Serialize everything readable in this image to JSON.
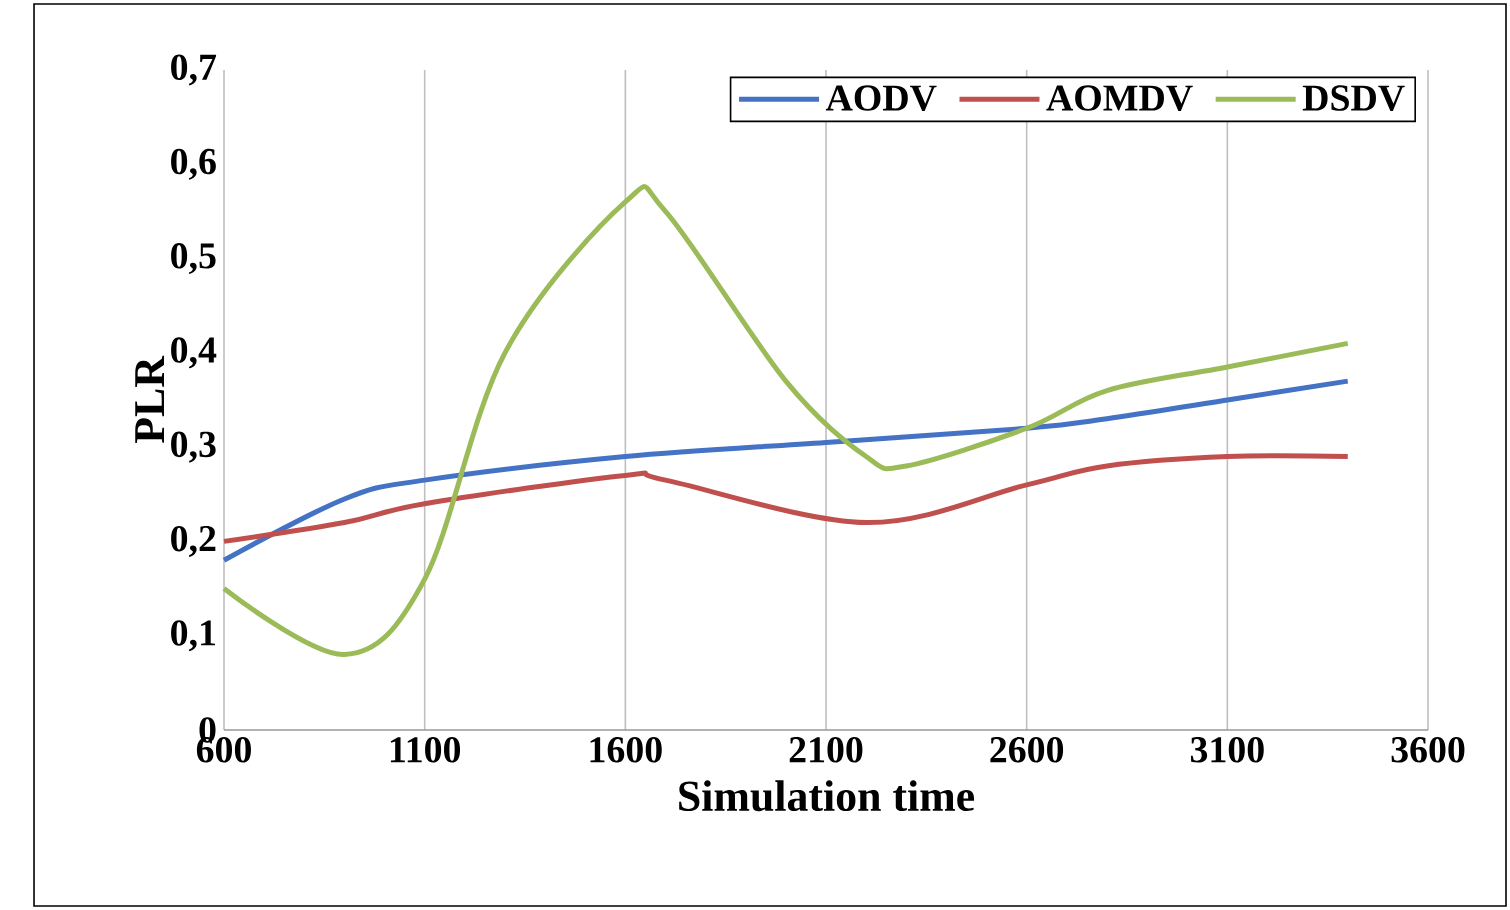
{
  "chart_data": {
    "type": "line",
    "xlabel": "Simulation time",
    "ylabel": "PLR",
    "xlim": [
      600,
      3600
    ],
    "xticks": [
      600,
      1100,
      1600,
      2100,
      2600,
      3100,
      3600
    ],
    "ylim": [
      0,
      0.7
    ],
    "yticks": [
      0,
      {
        "value": 0.1,
        "label": "0,1"
      },
      {
        "value": 0.2,
        "label": "0,2"
      },
      {
        "value": 0.3,
        "label": "0,3"
      },
      {
        "value": 0.4,
        "label": "0,4"
      },
      {
        "value": 0.5,
        "label": "0,5"
      },
      {
        "value": 0.6,
        "label": "0,6"
      },
      {
        "value": 0.7,
        "label": "0,7"
      }
    ],
    "grid": "x",
    "legend": "top right",
    "marker": "none",
    "line_style": "solid",
    "series": [
      {
        "name": "AODV",
        "color": "#4472c4",
        "x": [
          600,
          900,
          1100,
          1600,
          2100,
          2600,
          2800,
          3100,
          3400
        ],
        "values": [
          0.18,
          0.245,
          0.265,
          0.29,
          0.305,
          0.32,
          0.33,
          0.35,
          0.37
        ]
      },
      {
        "name": "AOMDV",
        "color": "#c0504d",
        "x": [
          600,
          900,
          1100,
          1600,
          1700,
          2200,
          2600,
          2800,
          3100,
          3400
        ],
        "values": [
          0.2,
          0.22,
          0.24,
          0.27,
          0.265,
          0.22,
          0.26,
          0.28,
          0.29,
          0.29
        ]
      },
      {
        "name": "DSDV",
        "color": "#9bbb59",
        "x": [
          600,
          900,
          1100,
          1300,
          1600,
          1700,
          2000,
          2200,
          2300,
          2600,
          2800,
          3100,
          3400
        ],
        "values": [
          0.15,
          0.08,
          0.16,
          0.4,
          0.56,
          0.55,
          0.37,
          0.29,
          0.28,
          0.32,
          0.36,
          0.385,
          0.41
        ]
      }
    ]
  }
}
